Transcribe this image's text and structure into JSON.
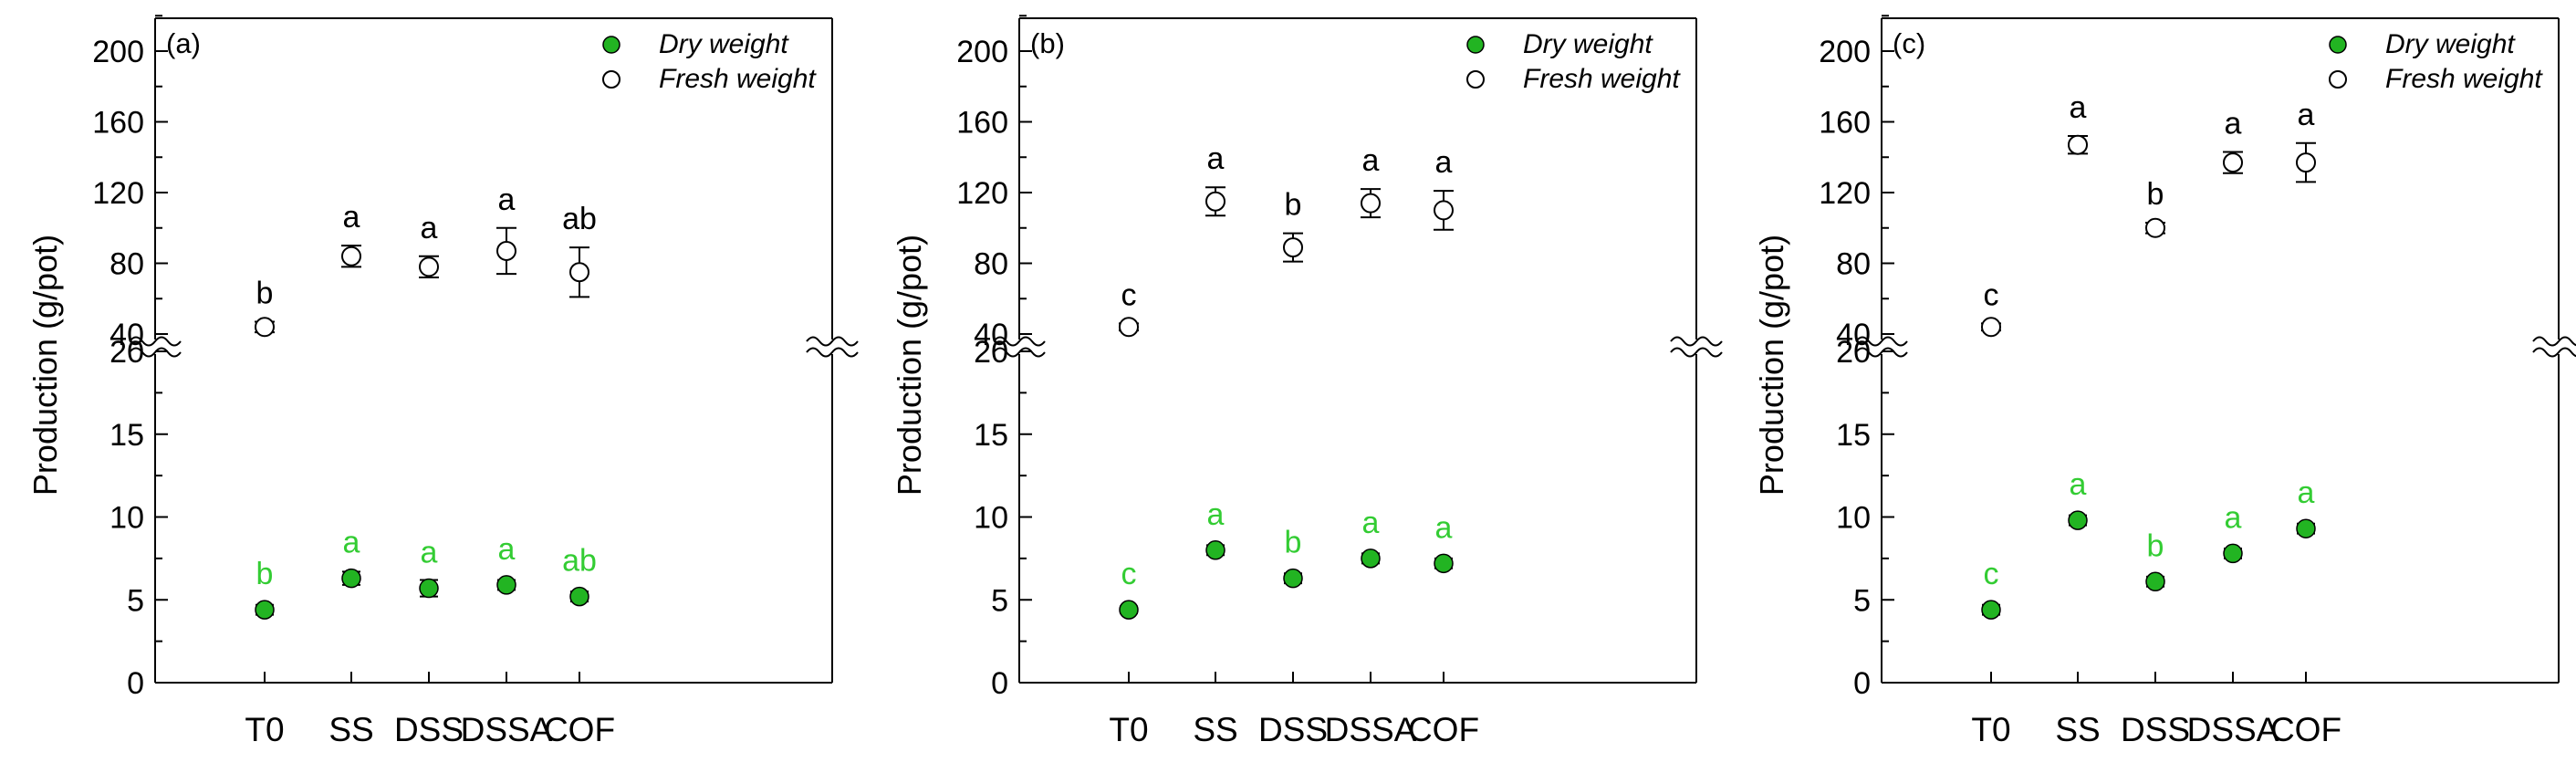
{
  "colors": {
    "dry": "#22b422",
    "fresh": "#ffffff",
    "axis": "#000000",
    "dry_label": "#33cc33"
  },
  "chart_data": [
    {
      "type": "scatter",
      "panel_label": "(a)",
      "categories": [
        "T0",
        "SS",
        "DSS",
        "DSSA",
        "COF"
      ],
      "ylabel": "Production (g/pot)",
      "axis_break": true,
      "lower_ylim": [
        0,
        20
      ],
      "upper_ylim": [
        40,
        220
      ],
      "lower_ticks": [
        "0",
        "5",
        "10",
        "15",
        "20"
      ],
      "upper_ticks": [
        "40",
        "80",
        "120",
        "160",
        "200"
      ],
      "legend": [
        "Dry weight",
        "Fresh weight"
      ],
      "series": [
        {
          "name": "Dry weight",
          "values": [
            4.4,
            6.3,
            5.7,
            5.9,
            5.2
          ],
          "errors": [
            0.3,
            0.4,
            0.5,
            0.3,
            0.3
          ],
          "letters": [
            "b",
            "a",
            "a",
            "a",
            "ab"
          ]
        },
        {
          "name": "Fresh weight",
          "values": [
            44,
            84,
            78,
            87,
            75
          ],
          "errors": [
            3,
            6,
            6,
            13,
            14
          ],
          "letters": [
            "b",
            "a",
            "a",
            "a",
            "ab"
          ]
        }
      ]
    },
    {
      "type": "scatter",
      "panel_label": "(b)",
      "categories": [
        "T0",
        "SS",
        "DSS",
        "DSSA",
        "COF"
      ],
      "ylabel": "Production (g/pot)",
      "axis_break": true,
      "lower_ylim": [
        0,
        20
      ],
      "upper_ylim": [
        40,
        220
      ],
      "lower_ticks": [
        "0",
        "5",
        "10",
        "15",
        "20"
      ],
      "upper_ticks": [
        "40",
        "80",
        "120",
        "160",
        "200"
      ],
      "legend": [
        "Dry weight",
        "Fresh weight"
      ],
      "series": [
        {
          "name": "Dry weight",
          "values": [
            4.4,
            8.0,
            6.3,
            7.5,
            7.2
          ],
          "errors": [
            0.2,
            0.3,
            0.3,
            0.3,
            0.3
          ],
          "letters": [
            "c",
            "a",
            "b",
            "a",
            "a"
          ]
        },
        {
          "name": "Fresh weight",
          "values": [
            44,
            115,
            89,
            114,
            110
          ],
          "errors": [
            2,
            8,
            8,
            8,
            11
          ],
          "letters": [
            "c",
            "a",
            "b",
            "a",
            "a"
          ]
        }
      ]
    },
    {
      "type": "scatter",
      "panel_label": "(c)",
      "categories": [
        "T0",
        "SS",
        "DSS",
        "DSSA",
        "COF"
      ],
      "ylabel": "Production (g/pot)",
      "axis_break": true,
      "lower_ylim": [
        0,
        20
      ],
      "upper_ylim": [
        40,
        220
      ],
      "lower_ticks": [
        "0",
        "5",
        "10",
        "15",
        "20"
      ],
      "upper_ticks": [
        "40",
        "80",
        "120",
        "160",
        "200"
      ],
      "legend": [
        "Dry weight",
        "Fresh weight"
      ],
      "series": [
        {
          "name": "Dry weight",
          "values": [
            4.4,
            9.8,
            6.1,
            7.8,
            9.3
          ],
          "errors": [
            0.3,
            0.3,
            0.3,
            0.3,
            0.3
          ],
          "letters": [
            "c",
            "a",
            "b",
            "a",
            "a"
          ]
        },
        {
          "name": "Fresh weight",
          "values": [
            44,
            147,
            100,
            137,
            137
          ],
          "errors": [
            2,
            5,
            3,
            6,
            11
          ],
          "letters": [
            "c",
            "a",
            "b",
            "a",
            "a"
          ]
        }
      ]
    }
  ]
}
